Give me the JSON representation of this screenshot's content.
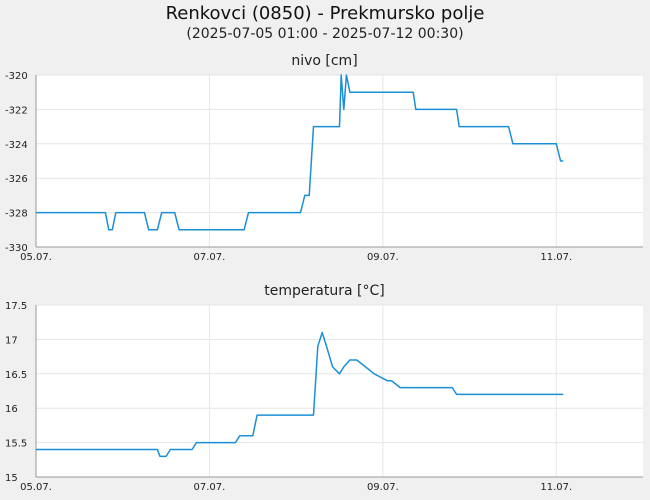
{
  "title": "Renkovci (0850) - Prekmursko polje",
  "subtitle": "(2025-07-05 01:00 - 2025-07-12 00:30)",
  "line_color": "#1a8fd6",
  "chart_data": [
    {
      "type": "line",
      "title": "nivo [cm]",
      "x_tick_labels": [
        "05.07.",
        "07.07.",
        "09.07.",
        "11.07."
      ],
      "x_tick_days": [
        0,
        2,
        4,
        6
      ],
      "xlim_days": [
        0,
        7
      ],
      "ylim": [
        -330,
        -320
      ],
      "y_ticks": [
        -330,
        -328,
        -326,
        -324,
        -322,
        -320
      ],
      "x_days": [
        0,
        0.8,
        0.84,
        0.88,
        0.92,
        1.25,
        1.3,
        1.4,
        1.45,
        1.6,
        1.65,
        2.4,
        2.45,
        3.05,
        3.1,
        3.15,
        3.2,
        3.25,
        3.3,
        3.5,
        3.52,
        3.55,
        3.58,
        3.62,
        3.65,
        4.35,
        4.38,
        4.85,
        4.88,
        5.45,
        5.5,
        6.0,
        6.05,
        6.08
      ],
      "values": [
        -328,
        -328,
        -329,
        -329,
        -328,
        -328,
        -329,
        -329,
        -328,
        -328,
        -329,
        -329,
        -328,
        -328,
        -327,
        -327,
        -323,
        -323,
        -323,
        -323,
        -320,
        -322,
        -320,
        -321,
        -321,
        -321,
        -322,
        -322,
        -323,
        -323,
        -324,
        -324,
        -325,
        -325
      ]
    },
    {
      "type": "line",
      "title": "temperatura [°C]",
      "x_tick_labels": [
        "05.07.",
        "07.07.",
        "09.07.",
        "11.07."
      ],
      "x_tick_days": [
        0,
        2,
        4,
        6
      ],
      "xlim_days": [
        0,
        7
      ],
      "ylim": [
        15,
        17.5
      ],
      "y_ticks": [
        15,
        15.5,
        16,
        16.5,
        17,
        17.5
      ],
      "x_days": [
        0,
        1.4,
        1.43,
        1.5,
        1.55,
        1.8,
        1.85,
        2.3,
        2.35,
        2.5,
        2.55,
        3.2,
        3.25,
        3.3,
        3.35,
        3.42,
        3.5,
        3.55,
        3.62,
        3.7,
        3.8,
        3.9,
        4.05,
        4.1,
        4.2,
        4.8,
        4.85,
        6.08
      ],
      "values": [
        15.4,
        15.4,
        15.3,
        15.3,
        15.4,
        15.4,
        15.5,
        15.5,
        15.6,
        15.6,
        15.9,
        15.9,
        16.9,
        17.1,
        16.9,
        16.6,
        16.5,
        16.6,
        16.7,
        16.7,
        16.6,
        16.5,
        16.4,
        16.4,
        16.3,
        16.3,
        16.2,
        16.2
      ]
    }
  ]
}
